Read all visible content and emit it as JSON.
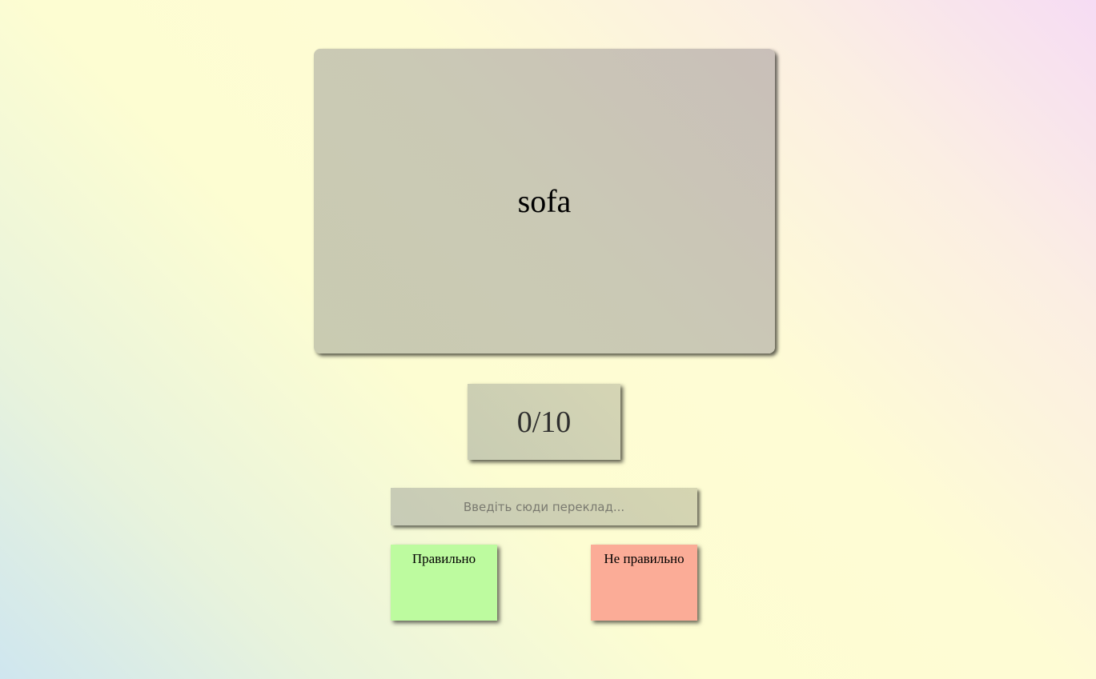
{
  "card": {
    "word": "sofa"
  },
  "score": {
    "text": "0/10"
  },
  "answer": {
    "value": "",
    "placeholder": "Введіть сюди переклад..."
  },
  "buttons": {
    "correct_label": "Правильно",
    "wrong_label": "Не правильно"
  },
  "colors": {
    "correct_button": "#bdfb9f",
    "wrong_button": "#fbac97",
    "card_background": "#cac9b5"
  }
}
